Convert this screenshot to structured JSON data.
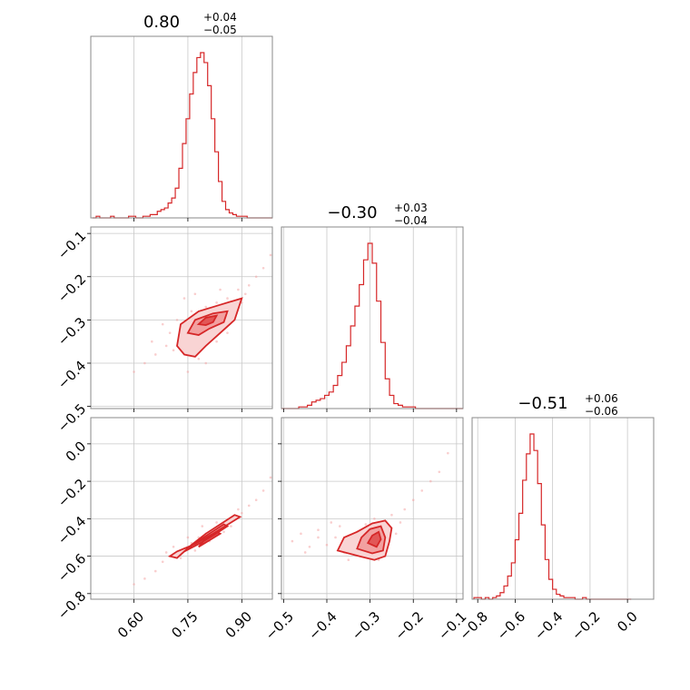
{
  "colors": {
    "accent": "#d62728",
    "grid": "#c8c8c8",
    "frame": "#888888"
  },
  "chart_data": {
    "type": "corner",
    "parameters": [
      {
        "index": 0,
        "title": {
          "value": "0.80",
          "plus": "+0.04",
          "minus": "−0.05"
        },
        "range": [
          0.48,
          0.985
        ],
        "ticks": [
          0.6,
          0.75,
          0.9
        ],
        "tick_labels": [
          "0.60",
          "0.75",
          "0.90"
        ],
        "hist": {
          "bin_centers": [
            0.49,
            0.5,
            0.51,
            0.52,
            0.53,
            0.54,
            0.55,
            0.56,
            0.57,
            0.58,
            0.59,
            0.6,
            0.61,
            0.62,
            0.63,
            0.64,
            0.65,
            0.66,
            0.67,
            0.68,
            0.69,
            0.7,
            0.71,
            0.72,
            0.73,
            0.74,
            0.75,
            0.76,
            0.77,
            0.78,
            0.79,
            0.8,
            0.81,
            0.82,
            0.83,
            0.84,
            0.85,
            0.86,
            0.87,
            0.88,
            0.89,
            0.9,
            0.91,
            0.92,
            0.93,
            0.94,
            0.95,
            0.96,
            0.97,
            0.98
          ],
          "counts": [
            0,
            0.01,
            0,
            0,
            0,
            0.01,
            0,
            0,
            0,
            0,
            0.01,
            0.01,
            0,
            0,
            0.01,
            0.01,
            0.02,
            0.02,
            0.04,
            0.05,
            0.06,
            0.09,
            0.12,
            0.18,
            0.3,
            0.45,
            0.6,
            0.75,
            0.88,
            0.97,
            1.0,
            0.94,
            0.8,
            0.6,
            0.4,
            0.22,
            0.1,
            0.05,
            0.03,
            0.02,
            0.01,
            0.01,
            0.01,
            0,
            0,
            0,
            0,
            0,
            0,
            0
          ]
        }
      },
      {
        "index": 1,
        "title": {
          "value": "−0.30",
          "plus": "+0.03",
          "minus": "−0.04"
        },
        "range": [
          -0.505,
          -0.085
        ],
        "ticks": [
          -0.5,
          -0.4,
          -0.3,
          -0.2,
          -0.1
        ],
        "tick_labels": [
          "−0.5",
          "−0.4",
          "−0.3",
          "−0.2",
          "−0.1"
        ],
        "hist": {
          "bin_centers": [
            -0.5,
            -0.49,
            -0.48,
            -0.47,
            -0.46,
            -0.45,
            -0.44,
            -0.43,
            -0.42,
            -0.41,
            -0.4,
            -0.39,
            -0.38,
            -0.37,
            -0.36,
            -0.35,
            -0.34,
            -0.33,
            -0.32,
            -0.31,
            -0.3,
            -0.29,
            -0.28,
            -0.27,
            -0.26,
            -0.25,
            -0.24,
            -0.23,
            -0.22,
            -0.21,
            -0.2,
            -0.19,
            -0.18,
            -0.17,
            -0.16,
            -0.15,
            -0.14,
            -0.13,
            -0.12,
            -0.11,
            -0.1,
            -0.09
          ],
          "counts": [
            0,
            0,
            0,
            0,
            0.01,
            0.01,
            0.02,
            0.04,
            0.05,
            0.06,
            0.08,
            0.1,
            0.14,
            0.2,
            0.28,
            0.38,
            0.5,
            0.62,
            0.75,
            0.9,
            1.0,
            0.88,
            0.65,
            0.4,
            0.18,
            0.08,
            0.03,
            0.02,
            0.01,
            0.01,
            0.01,
            0,
            0,
            0,
            0,
            0,
            0,
            0,
            0,
            0,
            0,
            0
          ]
        }
      },
      {
        "index": 2,
        "title": {
          "value": "−0.51",
          "plus": "+0.06",
          "minus": "−0.06"
        },
        "range": [
          -0.83,
          0.14
        ],
        "ticks": [
          -0.8,
          -0.6,
          -0.4,
          -0.2,
          0.0
        ],
        "tick_labels": [
          "−0.8",
          "−0.6",
          "−0.4",
          "−0.2",
          "0.0"
        ],
        "hist": {
          "bin_centers": [
            -0.81,
            -0.79,
            -0.77,
            -0.75,
            -0.73,
            -0.71,
            -0.69,
            -0.67,
            -0.65,
            -0.63,
            -0.61,
            -0.59,
            -0.57,
            -0.55,
            -0.53,
            -0.51,
            -0.49,
            -0.47,
            -0.45,
            -0.43,
            -0.41,
            -0.39,
            -0.37,
            -0.35,
            -0.33,
            -0.31,
            -0.29,
            -0.27,
            -0.25,
            -0.23,
            -0.21,
            -0.19,
            -0.17,
            -0.15,
            -0.13,
            -0.11,
            -0.09,
            -0.07,
            -0.05,
            -0.03,
            -0.01,
            0.01
          ],
          "counts": [
            0.01,
            0.01,
            0,
            0.01,
            0,
            0.01,
            0.02,
            0.04,
            0.08,
            0.14,
            0.22,
            0.36,
            0.52,
            0.72,
            0.88,
            1.0,
            0.9,
            0.7,
            0.45,
            0.24,
            0.12,
            0.06,
            0.03,
            0.02,
            0.01,
            0.01,
            0.01,
            0,
            0,
            0.01,
            0,
            0,
            0,
            0,
            0,
            0,
            0,
            0,
            0,
            0,
            0,
            0
          ]
        }
      }
    ],
    "pairs": [
      {
        "x_param": 0,
        "y_param": 1,
        "points": [
          [
            0.6,
            -0.42
          ],
          [
            0.63,
            -0.4
          ],
          [
            0.66,
            -0.38
          ],
          [
            0.69,
            -0.36
          ],
          [
            0.7,
            -0.33
          ],
          [
            0.72,
            -0.3
          ],
          [
            0.73,
            -0.34
          ],
          [
            0.74,
            -0.36
          ],
          [
            0.75,
            -0.31
          ],
          [
            0.76,
            -0.28
          ],
          [
            0.77,
            -0.38
          ],
          [
            0.78,
            -0.33
          ],
          [
            0.79,
            -0.3
          ],
          [
            0.8,
            -0.27
          ],
          [
            0.81,
            -0.32
          ],
          [
            0.82,
            -0.29
          ],
          [
            0.83,
            -0.26
          ],
          [
            0.84,
            -0.31
          ],
          [
            0.85,
            -0.28
          ],
          [
            0.86,
            -0.25
          ],
          [
            0.87,
            -0.3
          ],
          [
            0.88,
            -0.27
          ],
          [
            0.89,
            -0.23
          ],
          [
            0.9,
            -0.26
          ],
          [
            0.92,
            -0.22
          ],
          [
            0.94,
            -0.2
          ],
          [
            0.96,
            -0.18
          ],
          [
            0.98,
            -0.15
          ],
          [
            0.71,
            -0.37
          ],
          [
            0.75,
            -0.42
          ],
          [
            0.78,
            -0.39
          ],
          [
            0.83,
            -0.35
          ],
          [
            0.68,
            -0.31
          ],
          [
            0.74,
            -0.25
          ],
          [
            0.86,
            -0.33
          ],
          [
            0.91,
            -0.24
          ],
          [
            0.65,
            -0.35
          ],
          [
            0.8,
            -0.4
          ],
          [
            0.77,
            -0.24
          ],
          [
            0.84,
            -0.23
          ]
        ],
        "contours": [
          [
            [
              0.72,
              -0.36
            ],
            [
              0.73,
              -0.31
            ],
            [
              0.78,
              -0.28
            ],
            [
              0.84,
              -0.265
            ],
            [
              0.9,
              -0.25
            ],
            [
              0.88,
              -0.3
            ],
            [
              0.84,
              -0.33
            ],
            [
              0.8,
              -0.36
            ],
            [
              0.77,
              -0.385
            ],
            [
              0.74,
              -0.38
            ]
          ],
          [
            [
              0.75,
              -0.33
            ],
            [
              0.77,
              -0.3
            ],
            [
              0.82,
              -0.285
            ],
            [
              0.86,
              -0.28
            ],
            [
              0.85,
              -0.305
            ],
            [
              0.81,
              -0.32
            ],
            [
              0.78,
              -0.335
            ]
          ],
          [
            [
              0.78,
              -0.31
            ],
            [
              0.8,
              -0.295
            ],
            [
              0.83,
              -0.29
            ],
            [
              0.82,
              -0.305
            ],
            [
              0.8,
              -0.312
            ]
          ]
        ]
      },
      {
        "x_param": 0,
        "y_param": 2,
        "points": [
          [
            0.6,
            -0.75
          ],
          [
            0.63,
            -0.72
          ],
          [
            0.66,
            -0.68
          ],
          [
            0.68,
            -0.63
          ],
          [
            0.7,
            -0.6
          ],
          [
            0.72,
            -0.58
          ],
          [
            0.74,
            -0.56
          ],
          [
            0.76,
            -0.53
          ],
          [
            0.78,
            -0.5
          ],
          [
            0.8,
            -0.48
          ],
          [
            0.82,
            -0.46
          ],
          [
            0.84,
            -0.44
          ],
          [
            0.86,
            -0.41
          ],
          [
            0.88,
            -0.39
          ],
          [
            0.9,
            -0.37
          ],
          [
            0.92,
            -0.33
          ],
          [
            0.94,
            -0.3
          ],
          [
            0.96,
            -0.25
          ],
          [
            0.98,
            -0.18
          ],
          [
            0.73,
            -0.61
          ],
          [
            0.77,
            -0.57
          ],
          [
            0.81,
            -0.52
          ],
          [
            0.85,
            -0.47
          ],
          [
            0.79,
            -0.44
          ],
          [
            0.83,
            -0.42
          ],
          [
            0.75,
            -0.5
          ],
          [
            0.71,
            -0.55
          ],
          [
            0.87,
            -0.44
          ],
          [
            0.69,
            -0.58
          ],
          [
            0.89,
            -0.35
          ]
        ],
        "contours": [
          [
            [
              0.7,
              -0.6
            ],
            [
              0.72,
              -0.575
            ],
            [
              0.77,
              -0.535
            ],
            [
              0.82,
              -0.48
            ],
            [
              0.87,
              -0.42
            ],
            [
              0.895,
              -0.39
            ],
            [
              0.88,
              -0.38
            ],
            [
              0.84,
              -0.43
            ],
            [
              0.8,
              -0.48
            ],
            [
              0.76,
              -0.54
            ],
            [
              0.72,
              -0.61
            ]
          ],
          [
            [
              0.74,
              -0.575
            ],
            [
              0.78,
              -0.535
            ],
            [
              0.82,
              -0.49
            ],
            [
              0.86,
              -0.44
            ],
            [
              0.85,
              -0.43
            ],
            [
              0.81,
              -0.48
            ],
            [
              0.77,
              -0.53
            ]
          ],
          [
            [
              0.78,
              -0.55
            ],
            [
              0.81,
              -0.515
            ],
            [
              0.84,
              -0.48
            ],
            [
              0.83,
              -0.47
            ],
            [
              0.8,
              -0.505
            ]
          ]
        ]
      },
      {
        "x_param": 1,
        "y_param": 2,
        "points": [
          [
            -0.48,
            -0.52
          ],
          [
            -0.46,
            -0.48
          ],
          [
            -0.44,
            -0.55
          ],
          [
            -0.42,
            -0.5
          ],
          [
            -0.42,
            -0.46
          ],
          [
            -0.4,
            -0.54
          ],
          [
            -0.38,
            -0.5
          ],
          [
            -0.37,
            -0.44
          ],
          [
            -0.36,
            -0.58
          ],
          [
            -0.34,
            -0.52
          ],
          [
            -0.33,
            -0.47
          ],
          [
            -0.32,
            -0.6
          ],
          [
            -0.31,
            -0.43
          ],
          [
            -0.3,
            -0.55
          ],
          [
            -0.29,
            -0.4
          ],
          [
            -0.28,
            -0.62
          ],
          [
            -0.27,
            -0.45
          ],
          [
            -0.26,
            -0.53
          ],
          [
            -0.25,
            -0.38
          ],
          [
            -0.24,
            -0.48
          ],
          [
            -0.22,
            -0.35
          ],
          [
            -0.2,
            -0.3
          ],
          [
            -0.18,
            -0.25
          ],
          [
            -0.16,
            -0.2
          ],
          [
            -0.14,
            -0.15
          ],
          [
            -0.12,
            -0.05
          ],
          [
            -0.35,
            -0.62
          ],
          [
            -0.45,
            -0.58
          ],
          [
            -0.39,
            -0.42
          ],
          [
            -0.23,
            -0.42
          ]
        ],
        "contours": [
          [
            [
              -0.375,
              -0.57
            ],
            [
              -0.36,
              -0.5
            ],
            [
              -0.33,
              -0.47
            ],
            [
              -0.295,
              -0.425
            ],
            [
              -0.265,
              -0.41
            ],
            [
              -0.25,
              -0.45
            ],
            [
              -0.255,
              -0.52
            ],
            [
              -0.265,
              -0.6
            ],
            [
              -0.29,
              -0.62
            ],
            [
              -0.325,
              -0.6
            ],
            [
              -0.35,
              -0.585
            ]
          ],
          [
            [
              -0.33,
              -0.56
            ],
            [
              -0.32,
              -0.5
            ],
            [
              -0.3,
              -0.455
            ],
            [
              -0.275,
              -0.44
            ],
            [
              -0.265,
              -0.5
            ],
            [
              -0.27,
              -0.57
            ],
            [
              -0.295,
              -0.585
            ]
          ],
          [
            [
              -0.305,
              -0.53
            ],
            [
              -0.295,
              -0.49
            ],
            [
              -0.28,
              -0.47
            ],
            [
              -0.275,
              -0.51
            ],
            [
              -0.285,
              -0.55
            ]
          ]
        ]
      }
    ],
    "grid": true
  }
}
